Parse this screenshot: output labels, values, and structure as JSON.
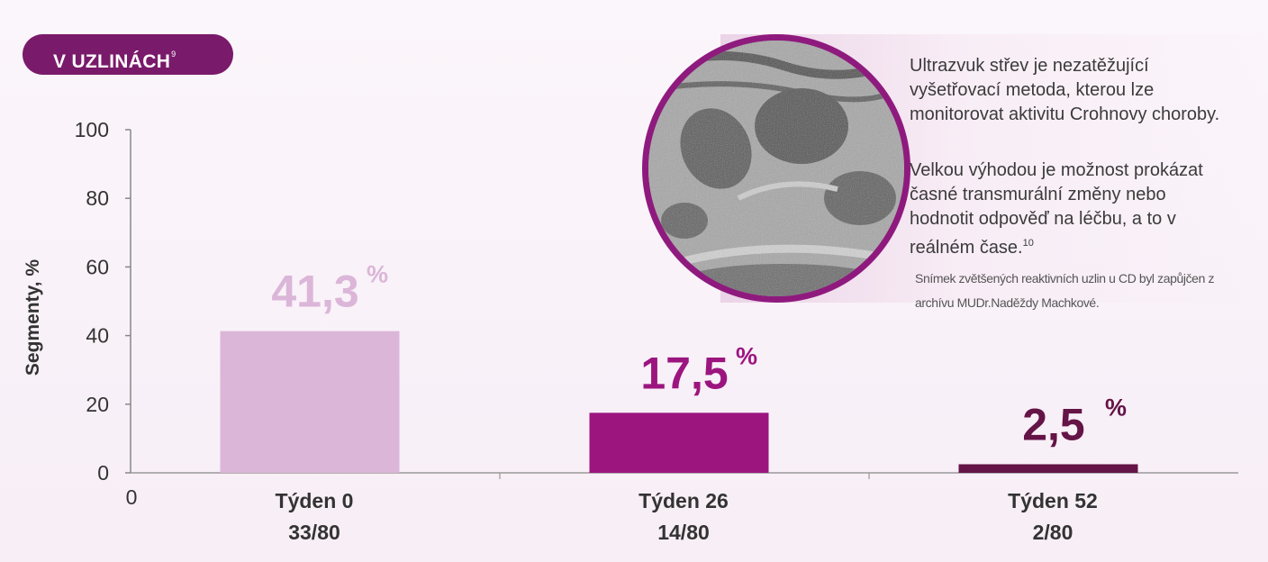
{
  "badge": {
    "label": "V UZLINÁCH",
    "ref": "9"
  },
  "info": {
    "p1": "Ultrazvuk střev je nezatěžující vyšetřovací metoda, kterou lze monitorovat aktivitu Crohnovy choroby.",
    "p2": "Velkou výhodou je možnost prokázat časné transmurální změny nebo hodnotit odpověď na léčbu, a to v reálném čase.",
    "p2_ref": "10",
    "credit": "Snímek zvětšených reaktivních uzlin u CD byl zapůjčen z archívu MUDr.Naděždy Machkové."
  },
  "chart_data": {
    "type": "bar",
    "categories": [
      "Týden 0",
      "Týden 26",
      "Týden 52"
    ],
    "sublabels": [
      "33/80",
      "14/80",
      "2/80"
    ],
    "values": [
      41.3,
      17.5,
      2.5
    ],
    "value_labels": [
      "41,3",
      "17,5",
      "2,5"
    ],
    "value_unit": "%",
    "ylabel": "Segmenty, %",
    "ylim": [
      0,
      100
    ],
    "yticks": [
      0,
      20,
      40,
      60,
      80,
      100
    ],
    "x_origin_label": "0",
    "colors": [
      "#dbb6d8",
      "#9c157f",
      "#641446"
    ],
    "label_colors": [
      "#dbb6d8",
      "#9c157f",
      "#641446"
    ],
    "grid": false
  }
}
